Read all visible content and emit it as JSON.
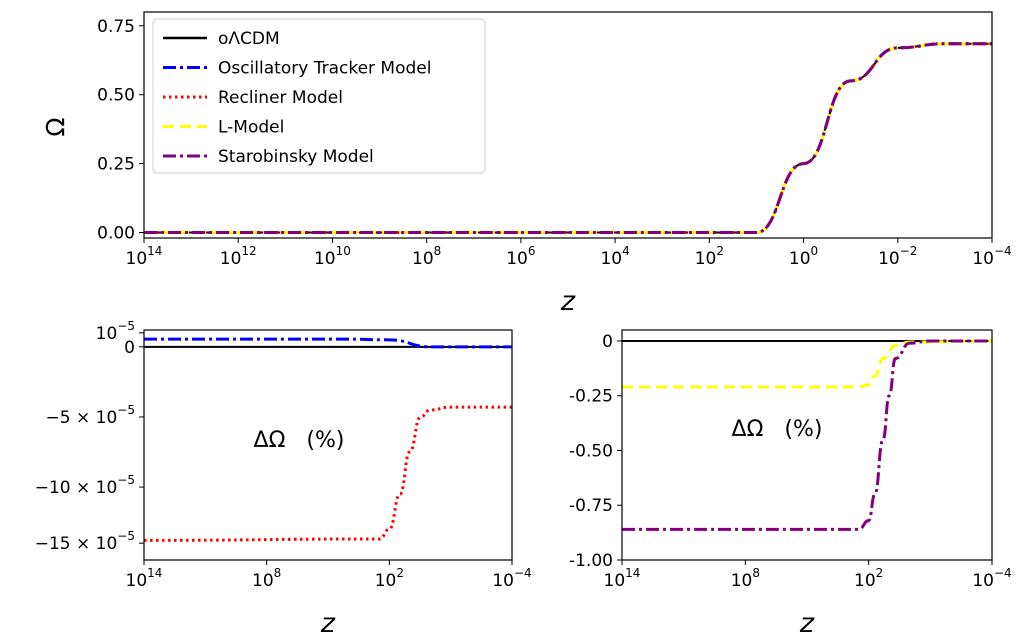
{
  "chart_data": [
    {
      "type": "line",
      "panel": "top",
      "ylabel": "Ω",
      "xlabel": "z",
      "x_scale": "log",
      "x_reversed": true,
      "xlim": [
        100000000000000.0,
        0.0001
      ],
      "ylim": [
        -0.02,
        0.8
      ],
      "xticks": [
        {
          "base": "10",
          "exp": "14"
        },
        {
          "base": "10",
          "exp": "12"
        },
        {
          "base": "10",
          "exp": "10"
        },
        {
          "base": "10",
          "exp": "8"
        },
        {
          "base": "10",
          "exp": "6"
        },
        {
          "base": "10",
          "exp": "4"
        },
        {
          "base": "10",
          "exp": "2"
        },
        {
          "base": "10",
          "exp": "0"
        },
        {
          "base": "10",
          "exp": "−2"
        },
        {
          "base": "10",
          "exp": "−4"
        }
      ],
      "yticks": [
        "0.00",
        "0.25",
        "0.50",
        "0.75"
      ],
      "legend_position": "top-left",
      "series": [
        {
          "name": "oΛCDM",
          "color": "#000000",
          "style": "solid",
          "x": [
            100000000000000.0,
            10,
            1,
            0.1,
            0.01,
            0.001,
            0.0001
          ],
          "y": [
            0,
            0,
            0.25,
            0.55,
            0.67,
            0.685,
            0.685
          ]
        },
        {
          "name": "Oscillatory Tracker Model",
          "color": "#0000ff",
          "style": "dashdot",
          "x": [
            100000000000000.0,
            10,
            1,
            0.1,
            0.01,
            0.001,
            0.0001
          ],
          "y": [
            0,
            0,
            0.25,
            0.55,
            0.67,
            0.685,
            0.685
          ]
        },
        {
          "name": "Recliner Model",
          "color": "#ff0000",
          "style": "dotted",
          "x": [
            100000000000000.0,
            10,
            1,
            0.1,
            0.01,
            0.001,
            0.0001
          ],
          "y": [
            0,
            0,
            0.25,
            0.55,
            0.67,
            0.685,
            0.685
          ]
        },
        {
          "name": "L-Model",
          "color": "#ffff00",
          "style": "dashed",
          "x": [
            100000000000000.0,
            10,
            1,
            0.1,
            0.01,
            0.001,
            0.0001
          ],
          "y": [
            0,
            0,
            0.25,
            0.55,
            0.67,
            0.685,
            0.685
          ]
        },
        {
          "name": "Starobinsky Model",
          "color": "#800080",
          "style": "dashdot",
          "x": [
            100000000000000.0,
            10,
            1,
            0.1,
            0.01,
            0.001,
            0.0001
          ],
          "y": [
            0,
            0,
            0.25,
            0.55,
            0.67,
            0.685,
            0.685
          ]
        }
      ]
    },
    {
      "type": "line",
      "panel": "bottom-left",
      "xlabel": "z",
      "annotation": "ΔΩ   (%)",
      "x_scale": "log",
      "x_reversed": true,
      "xlim": [
        100000000000000.0,
        0.0001
      ],
      "ylim": [
        -0.000152,
        1.2e-05
      ],
      "xticks": [
        {
          "base": "10",
          "exp": "14"
        },
        {
          "base": "10",
          "exp": "8"
        },
        {
          "base": "10",
          "exp": "2"
        },
        {
          "base": "10",
          "exp": "−4"
        }
      ],
      "yticks": [
        {
          "value": 1e-05,
          "label": "10",
          "exp": "−5"
        },
        {
          "value": 0,
          "label": "0",
          "exp": ""
        },
        {
          "value": -5e-05,
          "label": "−5 × 10",
          "exp": "−5"
        },
        {
          "value": -0.0001,
          "label": "−10 × 10",
          "exp": "−5"
        },
        {
          "value": -0.00014,
          "label": "−15 × 10",
          "exp": "−5"
        }
      ],
      "series": [
        {
          "name": "oΛCDM",
          "color": "#000000",
          "style": "solid",
          "x": [
            100000000000000.0,
            0.0001
          ],
          "y": [
            0,
            0
          ]
        },
        {
          "name": "Oscillatory Tracker Model",
          "color": "#0000ff",
          "style": "dashdot",
          "x": [
            100000000000000.0,
            10000,
            100,
            1,
            0.0001
          ],
          "y": [
            5.5e-06,
            5.5e-06,
            5e-06,
            0,
            0
          ]
        },
        {
          "name": "Recliner Model",
          "color": "#ff0000",
          "style": "dotted",
          "x": [
            100000000000000.0,
            300,
            100,
            30,
            10,
            3,
            1,
            0.1,
            0.0001
          ],
          "y": [
            -0.000138,
            -0.000137,
            -0.00013,
            -0.000105,
            -7.5e-05,
            -5e-05,
            -4.5e-05,
            -4.3e-05,
            -4.3e-05
          ]
        }
      ]
    },
    {
      "type": "line",
      "panel": "bottom-right",
      "xlabel": "z",
      "annotation": "ΔΩ   (%)",
      "x_scale": "log",
      "x_reversed": true,
      "xlim": [
        100000000000000.0,
        0.0001
      ],
      "ylim": [
        -1.0,
        0.05
      ],
      "xticks": [
        {
          "base": "10",
          "exp": "14"
        },
        {
          "base": "10",
          "exp": "8"
        },
        {
          "base": "10",
          "exp": "2"
        },
        {
          "base": "10",
          "exp": "−4"
        }
      ],
      "yticks": [
        {
          "value": 0,
          "label": "0"
        },
        {
          "value": -0.25,
          "label": "-0.25"
        },
        {
          "value": -0.5,
          "label": "-0.50"
        },
        {
          "value": -0.75,
          "label": "-0.75"
        },
        {
          "value": -1.0,
          "label": "-1.00"
        }
      ],
      "series": [
        {
          "name": "oΛCDM",
          "color": "#000000",
          "style": "solid",
          "x": [
            100000000000000.0,
            0.0001
          ],
          "y": [
            0,
            0
          ]
        },
        {
          "name": "L-Model",
          "color": "#ffff00",
          "style": "dashed",
          "x": [
            100000000000000.0,
            300,
            100,
            50,
            20,
            5,
            1,
            0.0001
          ],
          "y": [
            -0.21,
            -0.21,
            -0.2,
            -0.16,
            -0.08,
            -0.02,
            -0.005,
            0
          ]
        },
        {
          "name": "Starobinsky Model",
          "color": "#800080",
          "style": "dashdot",
          "x": [
            100000000000000.0,
            300,
            100,
            50,
            20,
            10,
            5,
            1,
            0.1,
            0.0001
          ],
          "y": [
            -0.86,
            -0.86,
            -0.82,
            -0.7,
            -0.45,
            -0.25,
            -0.08,
            -0.01,
            0,
            0
          ]
        }
      ]
    }
  ]
}
